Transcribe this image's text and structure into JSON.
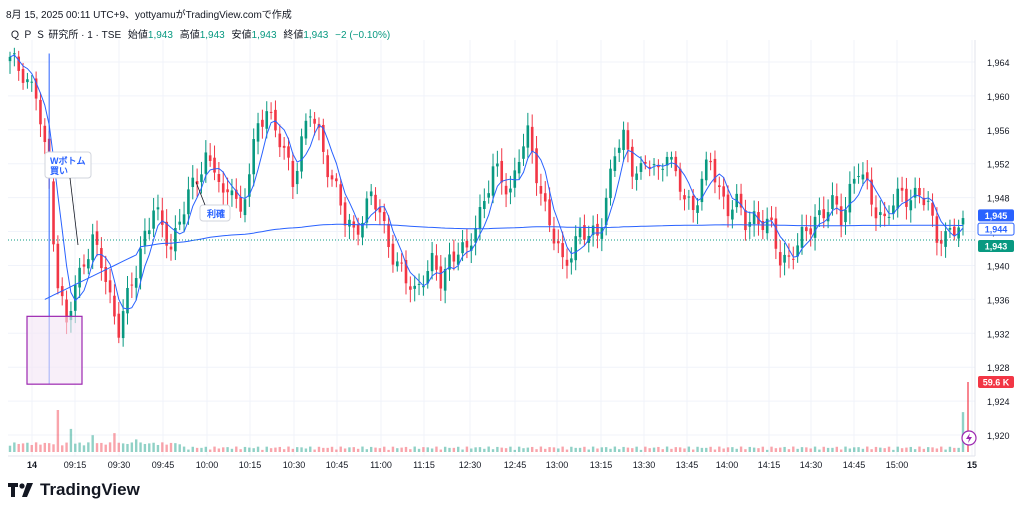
{
  "caption": "8月 15, 2025 00:11 UTC+9、yottyamuがTradingView.comで作成",
  "legend": {
    "symbol": "Ｑ Ｐ Ｓ 研究所 · 1 · TSE",
    "open_label": "始値",
    "open": "1,943",
    "high_label": "高値",
    "high": "1,943",
    "low_label": "安値",
    "low": "1,943",
    "close_label": "終値",
    "close": "1,943",
    "change": "−2 (−0.10%)"
  },
  "brand": "TradingView",
  "colors": {
    "up": "#089981",
    "down": "#F23645",
    "ma": "#2962FF",
    "vwap": "#2962FF",
    "box_stroke": "#9C27B0",
    "box_fill": "#F3E5F5",
    "last_price_bg": "#089981",
    "vol_badge_bg": "#F23645"
  },
  "chart_data": {
    "type": "candlestick",
    "interval": "1 minute",
    "symbol": "QPS研究所",
    "ylim": [
      1918,
      1966
    ],
    "yticks": [
      "1,920",
      "1,924",
      "1,928",
      "1,932",
      "1,936",
      "1,940",
      "1,944",
      "1,948",
      "1,952",
      "1,956",
      "1,960",
      "1,964"
    ],
    "xticks": [
      "14",
      "09:15",
      "09:30",
      "09:45",
      "10:00",
      "10:15",
      "10:30",
      "10:45",
      "11:00",
      "11:15",
      "12:30",
      "12:45",
      "13:00",
      "13:15",
      "13:30",
      "13:45",
      "14:00",
      "14:15",
      "14:30",
      "14:45",
      "15:00",
      "15"
    ],
    "price_labels": [
      {
        "text": "1,945",
        "value": 1945.2
      },
      {
        "text": "1,944",
        "value": 1944.4
      },
      {
        "text": "1,943",
        "value": 1943.0
      }
    ],
    "volume_badge": "59.6 K",
    "annotations": [
      {
        "text": "Wボトム\n買い"
      },
      {
        "text": "利確"
      }
    ],
    "close_path": [
      [
        0,
        1964
      ],
      [
        3,
        1963
      ],
      [
        6,
        1960
      ],
      [
        9,
        1950
      ],
      [
        11,
        1938
      ],
      [
        13,
        1933
      ],
      [
        15,
        1937
      ],
      [
        17,
        1941
      ],
      [
        19,
        1943
      ],
      [
        21,
        1940
      ],
      [
        23,
        1936
      ],
      [
        25,
        1933
      ],
      [
        27,
        1936
      ],
      [
        29,
        1939
      ],
      [
        31,
        1944
      ],
      [
        33,
        1947
      ],
      [
        35,
        1944
      ],
      [
        37,
        1942
      ],
      [
        39,
        1946
      ],
      [
        41,
        1948
      ],
      [
        43,
        1950
      ],
      [
        45,
        1953
      ],
      [
        47,
        1952
      ],
      [
        49,
        1947
      ],
      [
        51,
        1950
      ],
      [
        53,
        1946
      ],
      [
        55,
        1951
      ],
      [
        57,
        1956
      ],
      [
        59,
        1959
      ],
      [
        61,
        1956
      ],
      [
        63,
        1953
      ],
      [
        65,
        1950
      ],
      [
        67,
        1955
      ],
      [
        69,
        1958
      ],
      [
        71,
        1955
      ],
      [
        73,
        1952
      ],
      [
        75,
        1949
      ],
      [
        77,
        1945
      ],
      [
        79,
        1944
      ],
      [
        81,
        1946
      ],
      [
        83,
        1948
      ],
      [
        85,
        1946
      ],
      [
        87,
        1943
      ],
      [
        89,
        1940
      ],
      [
        91,
        1938
      ],
      [
        93,
        1937
      ],
      [
        95,
        1939
      ],
      [
        97,
        1940
      ],
      [
        99,
        1938
      ],
      [
        101,
        1941
      ],
      [
        103,
        1942
      ],
      [
        105,
        1941
      ],
      [
        107,
        1945
      ],
      [
        109,
        1948
      ],
      [
        111,
        1951
      ],
      [
        113,
        1950
      ],
      [
        115,
        1949
      ],
      [
        117,
        1953
      ],
      [
        119,
        1955
      ],
      [
        121,
        1951
      ],
      [
        123,
        1947
      ],
      [
        125,
        1943
      ],
      [
        127,
        1940
      ],
      [
        129,
        1942
      ],
      [
        131,
        1944
      ],
      [
        133,
        1943
      ],
      [
        135,
        1944
      ],
      [
        137,
        1948
      ],
      [
        139,
        1953
      ],
      [
        141,
        1955
      ],
      [
        143,
        1952
      ],
      [
        145,
        1951
      ],
      [
        147,
        1952
      ],
      [
        149,
        1951
      ],
      [
        151,
        1954
      ],
      [
        153,
        1950
      ],
      [
        155,
        1948
      ],
      [
        157,
        1947
      ],
      [
        159,
        1950
      ],
      [
        161,
        1952
      ],
      [
        163,
        1949
      ],
      [
        165,
        1947
      ],
      [
        167,
        1947
      ],
      [
        169,
        1945
      ],
      [
        171,
        1946
      ],
      [
        173,
        1945
      ],
      [
        175,
        1944
      ],
      [
        177,
        1941
      ],
      [
        179,
        1941
      ],
      [
        181,
        1942
      ],
      [
        183,
        1944
      ],
      [
        185,
        1946
      ],
      [
        187,
        1946
      ],
      [
        189,
        1947
      ],
      [
        191,
        1946
      ],
      [
        193,
        1949
      ],
      [
        195,
        1951
      ],
      [
        197,
        1949
      ],
      [
        199,
        1947
      ],
      [
        201,
        1945
      ],
      [
        203,
        1947
      ],
      [
        205,
        1949
      ],
      [
        207,
        1948
      ],
      [
        209,
        1948
      ],
      [
        211,
        1947
      ],
      [
        213,
        1944
      ],
      [
        215,
        1943
      ],
      [
        217,
        1944
      ],
      [
        219,
        1945
      ]
    ],
    "volume_spikes": [
      {
        "bar": 11,
        "ratio": 1.0
      },
      {
        "bar": 14,
        "ratio": 0.55
      },
      {
        "bar": 19,
        "ratio": 0.4
      },
      {
        "bar": 24,
        "ratio": 0.45
      },
      {
        "bar": 29,
        "ratio": 0.3
      },
      {
        "bar": 219,
        "ratio": 0.95
      }
    ]
  }
}
